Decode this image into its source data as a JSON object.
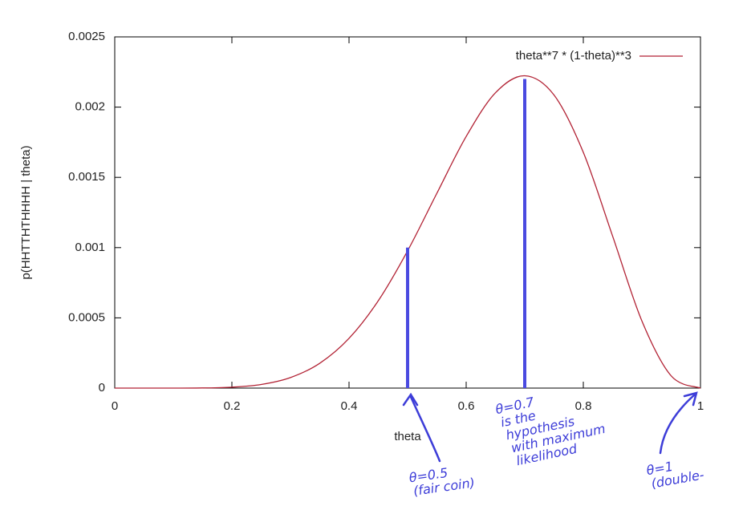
{
  "chart_data": {
    "type": "line",
    "x_label": "theta",
    "y_label": "p(HHTTHTHHHH | theta)",
    "x": [
      0,
      0.05,
      0.1,
      0.15,
      0.2,
      0.25,
      0.3,
      0.35,
      0.4,
      0.45,
      0.5,
      0.55,
      0.6,
      0.65,
      0.7,
      0.75,
      0.8,
      0.85,
      0.9,
      0.95,
      1
    ],
    "series": [
      {
        "name": "theta**7 * (1-theta)**3",
        "color": "#b22234",
        "values": [
          0,
          0,
          1e-07,
          1e-06,
          6.6e-06,
          2.57e-05,
          7.5e-05,
          0.0001766,
          0.000354,
          0.000622,
          0.000977,
          0.001387,
          0.001791,
          0.002102,
          0.002223,
          0.002086,
          0.001678,
          0.001082,
          0.000478,
          8.7e-05,
          0
        ]
      }
    ],
    "markers": {
      "color": "#4a4ae0",
      "x": [
        0.5,
        0.7
      ],
      "values": [
        0.001,
        0.0022
      ]
    },
    "xlim": [
      0,
      1
    ],
    "xticks": [
      0,
      0.2,
      0.4,
      0.6,
      0.8,
      1
    ],
    "ylim": [
      0,
      0.0025
    ],
    "yticks": [
      0,
      0.0005,
      0.001,
      0.0015,
      0.002,
      0.0025
    ],
    "legend": "top-right",
    "annotations": [
      {
        "lines": [
          "θ=0.5",
          "(fair coin)"
        ]
      },
      {
        "lines": [
          "θ=0.7",
          "is the",
          "hypothesis",
          "with maximum",
          "likelihood"
        ]
      },
      {
        "lines": [
          "θ=1",
          "(double-"
        ]
      }
    ]
  }
}
